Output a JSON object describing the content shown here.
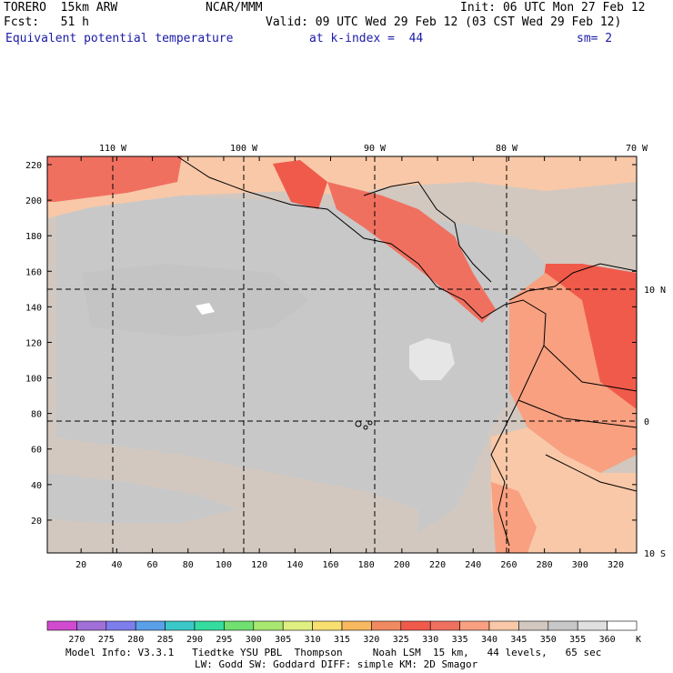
{
  "header": {
    "model": "TORERO  15km ARW",
    "center": "NCAR/MMM",
    "init": "Init: 06 UTC Mon 27 Feb 12",
    "fcst": "Fcst:   51 h",
    "valid": "Valid: 09 UTC Wed 29 Feb 12 (03 CST Wed 29 Feb 12)",
    "field": "Equivalent potential temperature",
    "level": "at k-index =  44",
    "smooth": "sm= 2"
  },
  "map": {
    "lon_labels": [
      "110 W",
      "100 W",
      "90 W",
      "80 W",
      "70 W"
    ],
    "lat_labels": [
      "10 N",
      "0",
      "10 S"
    ],
    "y_ticks": [
      "20",
      "40",
      "60",
      "80",
      "100",
      "120",
      "140",
      "160",
      "180",
      "200",
      "220"
    ],
    "x_ticks": [
      "20",
      "40",
      "60",
      "80",
      "100",
      "120",
      "140",
      "160",
      "180",
      "200",
      "220",
      "240",
      "260",
      "280",
      "300",
      "320"
    ]
  },
  "colorbar": {
    "values": [
      "270",
      "275",
      "280",
      "285",
      "290",
      "295",
      "300",
      "305",
      "310",
      "315",
      "320",
      "325",
      "330",
      "335",
      "340",
      "345",
      "350",
      "355",
      "360"
    ],
    "unit": "K",
    "colors": [
      "#d04bd0",
      "#a070d8",
      "#7d7deb",
      "#5aa0e8",
      "#3cc8c8",
      "#35dca0",
      "#70e070",
      "#a8e870",
      "#e0f080",
      "#f8e070",
      "#f8b860",
      "#f08a60",
      "#f05a4a",
      "#f07060",
      "#f8a080",
      "#f8c8a8",
      "#d2c8c0",
      "#c8c8c8",
      "#e0e0e0",
      "#ffffff"
    ]
  },
  "footer": {
    "line1": "Model Info: V3.3.1   Tiedtke YSU PBL  Thompson     Noah LSM  15 km,   44 levels,   65 sec",
    "line2": "LW: Godd SW: Goddard DIFF: simple KM: 2D Smagor"
  }
}
